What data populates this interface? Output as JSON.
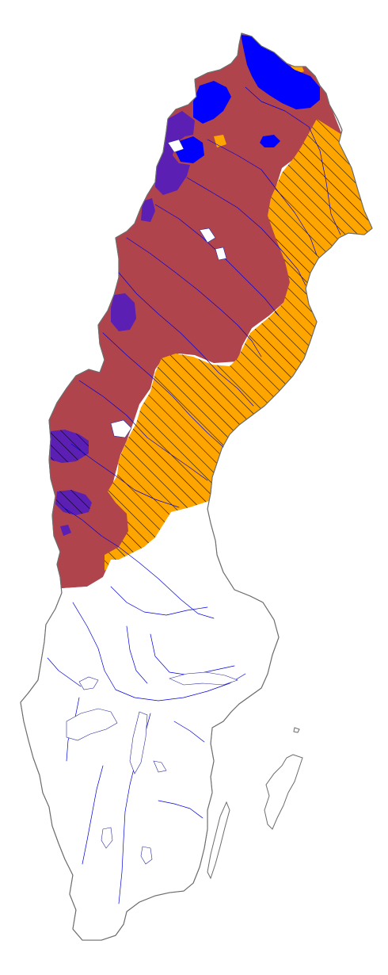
{
  "map": {
    "country": "Sweden",
    "colors": {
      "background": "#ffffff",
      "outline": "#6d6d6d",
      "zone_red": "#b0444d",
      "zone_orange": "#ffa500",
      "zone_blue": "#0000ff",
      "zone_purple": "#5b1fb4",
      "hatch": "#000000",
      "rivers": "#0000dd"
    },
    "legend": []
  }
}
